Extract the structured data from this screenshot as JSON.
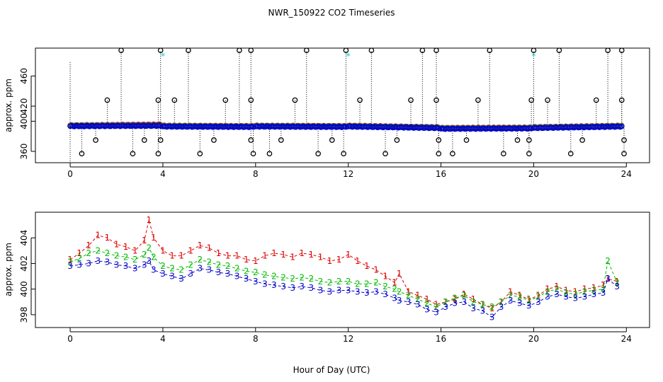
{
  "title": "NWR_150922  CO2 Timeseries",
  "xlabel": "Hour of Day (UTC)",
  "colors": {
    "series1": "#dd0000",
    "series2": "#00bb00",
    "series3": "#0000cc",
    "flag": "#00cccc",
    "outlier": "#000000"
  },
  "chart_data": [
    {
      "type": "scatter",
      "name": "top-panel",
      "ylabel": "approx. ppm",
      "xlim": [
        -1.5,
        25
      ],
      "ylim": [
        345,
        497
      ],
      "xticks": [
        0,
        4,
        8,
        12,
        16,
        20,
        24
      ],
      "yticks": [
        360,
        400,
        420,
        460
      ],
      "series": [
        {
          "name": "1",
          "color": "#dd0000",
          "segments": [
            [
              0.0,
              394.5,
              3.9,
              395.5
            ],
            [
              4.0,
              394.0,
              7.9,
              393.5
            ],
            [
              8.0,
              394.0,
              11.9,
              393.5
            ],
            [
              12.0,
              394.0,
              15.9,
              392.0
            ],
            [
              16.0,
              391.0,
              19.9,
              391.5
            ],
            [
              20.0,
              392.0,
              23.8,
              394.0
            ]
          ]
        },
        {
          "name": "2",
          "color": "#00bb00",
          "segments": [
            [
              0.0,
              394.0,
              3.9,
              394.5
            ],
            [
              4.0,
              393.5,
              7.9,
              393.0
            ],
            [
              8.0,
              393.5,
              11.9,
              393.0
            ],
            [
              12.0,
              393.5,
              15.9,
              391.5
            ],
            [
              16.0,
              390.5,
              19.9,
              391.0
            ],
            [
              20.0,
              391.5,
              23.8,
              393.5
            ]
          ]
        },
        {
          "name": "3",
          "color": "#0000cc",
          "segments": [
            [
              0.0,
              393.5,
              3.9,
              394.0
            ],
            [
              4.0,
              393.0,
              7.9,
              392.5
            ],
            [
              8.0,
              393.0,
              11.9,
              392.5
            ],
            [
              12.0,
              393.0,
              15.9,
              391.0
            ],
            [
              16.0,
              390.0,
              19.9,
              390.5
            ],
            [
              20.0,
              391.0,
              23.8,
              393.0
            ]
          ]
        }
      ],
      "outliers_high": [
        2.2,
        3.9,
        5.1,
        7.3,
        7.8,
        10.2,
        11.9,
        13.0,
        15.2,
        15.8,
        18.1,
        20.0,
        21.1,
        23.2,
        23.8
      ],
      "outliers_mid": [
        1.6,
        3.8,
        4.5,
        6.7,
        7.8,
        9.7,
        12.5,
        14.7,
        15.8,
        17.6,
        19.9,
        20.6,
        22.7,
        23.8
      ],
      "outliers_low": [
        0.5,
        2.7,
        3.8,
        5.6,
        7.9,
        8.6,
        10.7,
        11.8,
        13.6,
        15.9,
        16.5,
        18.7,
        19.8,
        21.6,
        23.9
      ],
      "outliers_lowmid": [
        1.1,
        3.2,
        3.9,
        6.2,
        7.8,
        9.1,
        11.3,
        14.1,
        15.9,
        17.1,
        19.3,
        19.8,
        22.1,
        23.9
      ],
      "flags": [
        4.0,
        12.0,
        20.0
      ]
    },
    {
      "type": "scatter",
      "name": "bottom-panel",
      "ylabel": "approx. ppm",
      "xlim": [
        -1.5,
        25
      ],
      "ylim": [
        397.0,
        406.0
      ],
      "xticks": [
        0,
        4,
        8,
        12,
        16,
        20,
        24
      ],
      "yticks": [
        398,
        400,
        402,
        404
      ],
      "series": [
        {
          "name": "1",
          "label": "1",
          "color": "#dd0000",
          "x": [
            0.0,
            0.4,
            0.8,
            1.2,
            1.6,
            2.0,
            2.4,
            2.8,
            3.2,
            3.4,
            3.6,
            4.0,
            4.4,
            4.8,
            5.2,
            5.6,
            6.0,
            6.4,
            6.8,
            7.2,
            7.6,
            8.0,
            8.4,
            8.8,
            9.2,
            9.6,
            10.0,
            10.4,
            10.8,
            11.2,
            11.6,
            12.0,
            12.4,
            12.8,
            13.2,
            13.6,
            14.0,
            14.2,
            14.6,
            15.0,
            15.4,
            15.8,
            16.2,
            16.6,
            17.0,
            17.4,
            17.8,
            18.2,
            18.6,
            19.0,
            19.4,
            19.8,
            20.2,
            20.6,
            21.0,
            21.4,
            21.8,
            22.2,
            22.6,
            23.0,
            23.2,
            23.6
          ],
          "y": [
            402.3,
            402.8,
            403.4,
            404.2,
            404.0,
            403.5,
            403.3,
            403.0,
            403.8,
            405.4,
            404.0,
            403.0,
            402.6,
            402.6,
            403.0,
            403.4,
            403.2,
            402.8,
            402.6,
            402.6,
            402.3,
            402.2,
            402.6,
            402.8,
            402.7,
            402.5,
            402.8,
            402.7,
            402.5,
            402.2,
            402.3,
            402.7,
            402.2,
            401.8,
            401.5,
            401.0,
            400.5,
            401.2,
            399.8,
            399.5,
            399.2,
            398.8,
            399.0,
            399.2,
            399.6,
            399.2,
            398.8,
            398.5,
            399.0,
            399.8,
            399.5,
            399.2,
            399.5,
            400.0,
            400.2,
            399.9,
            399.8,
            400.0,
            400.1,
            400.3,
            400.8,
            400.6
          ]
        },
        {
          "name": "2",
          "label": "2",
          "color": "#00bb00",
          "x": [
            0.0,
            0.4,
            0.8,
            1.2,
            1.6,
            2.0,
            2.4,
            2.8,
            3.2,
            3.4,
            3.6,
            4.0,
            4.4,
            4.8,
            5.2,
            5.6,
            6.0,
            6.4,
            6.8,
            7.2,
            7.6,
            8.0,
            8.4,
            8.8,
            9.2,
            9.6,
            10.0,
            10.4,
            10.8,
            11.2,
            11.6,
            12.0,
            12.4,
            12.8,
            13.2,
            13.6,
            14.0,
            14.2,
            14.6,
            15.0,
            15.4,
            15.8,
            16.2,
            16.6,
            17.0,
            17.4,
            17.8,
            18.2,
            18.6,
            19.0,
            19.4,
            19.8,
            20.2,
            20.6,
            21.0,
            21.4,
            21.8,
            22.2,
            22.6,
            23.0,
            23.2,
            23.6
          ],
          "y": [
            402.1,
            402.4,
            402.8,
            403.0,
            402.8,
            402.6,
            402.5,
            402.3,
            402.7,
            403.2,
            402.5,
            401.8,
            401.6,
            401.5,
            401.9,
            402.3,
            402.1,
            401.9,
            401.8,
            401.6,
            401.4,
            401.3,
            401.1,
            401.0,
            400.9,
            400.8,
            400.9,
            400.8,
            400.6,
            400.5,
            400.6,
            400.6,
            400.4,
            400.4,
            400.5,
            400.2,
            400.0,
            399.8,
            399.5,
            399.2,
            398.9,
            398.6,
            399.0,
            399.3,
            399.5,
            399.0,
            398.8,
            398.6,
            399.0,
            399.5,
            399.4,
            399.1,
            399.4,
            399.8,
            400.0,
            399.7,
            399.6,
            399.8,
            399.9,
            400.0,
            402.2,
            400.5
          ]
        },
        {
          "name": "3",
          "label": "3",
          "color": "#0000cc",
          "x": [
            0.0,
            0.4,
            0.8,
            1.2,
            1.6,
            2.0,
            2.4,
            2.8,
            3.2,
            3.4,
            3.6,
            4.0,
            4.4,
            4.8,
            5.2,
            5.6,
            6.0,
            6.4,
            6.8,
            7.2,
            7.6,
            8.0,
            8.4,
            8.8,
            9.2,
            9.6,
            10.0,
            10.4,
            10.8,
            11.2,
            11.6,
            12.0,
            12.4,
            12.8,
            13.2,
            13.6,
            14.0,
            14.2,
            14.6,
            15.0,
            15.4,
            15.8,
            16.2,
            16.6,
            17.0,
            17.4,
            17.8,
            18.2,
            18.6,
            19.0,
            19.4,
            19.8,
            20.2,
            20.6,
            21.0,
            21.4,
            21.8,
            22.2,
            22.6,
            23.0,
            23.2,
            23.6
          ],
          "y": [
            401.8,
            401.9,
            402.0,
            402.2,
            402.1,
            401.9,
            401.8,
            401.6,
            401.9,
            402.2,
            401.5,
            401.2,
            401.0,
            400.8,
            401.2,
            401.6,
            401.5,
            401.3,
            401.2,
            401.0,
            400.8,
            400.6,
            400.4,
            400.3,
            400.2,
            400.1,
            400.2,
            400.1,
            399.9,
            399.8,
            399.9,
            399.9,
            399.8,
            399.7,
            399.8,
            399.6,
            399.3,
            399.1,
            399.0,
            398.8,
            398.4,
            398.2,
            398.6,
            398.9,
            399.0,
            398.5,
            398.3,
            397.8,
            398.6,
            399.1,
            398.9,
            398.7,
            399.0,
            399.4,
            399.6,
            399.4,
            399.3,
            399.4,
            399.6,
            399.7,
            400.8,
            400.2
          ]
        }
      ]
    }
  ]
}
